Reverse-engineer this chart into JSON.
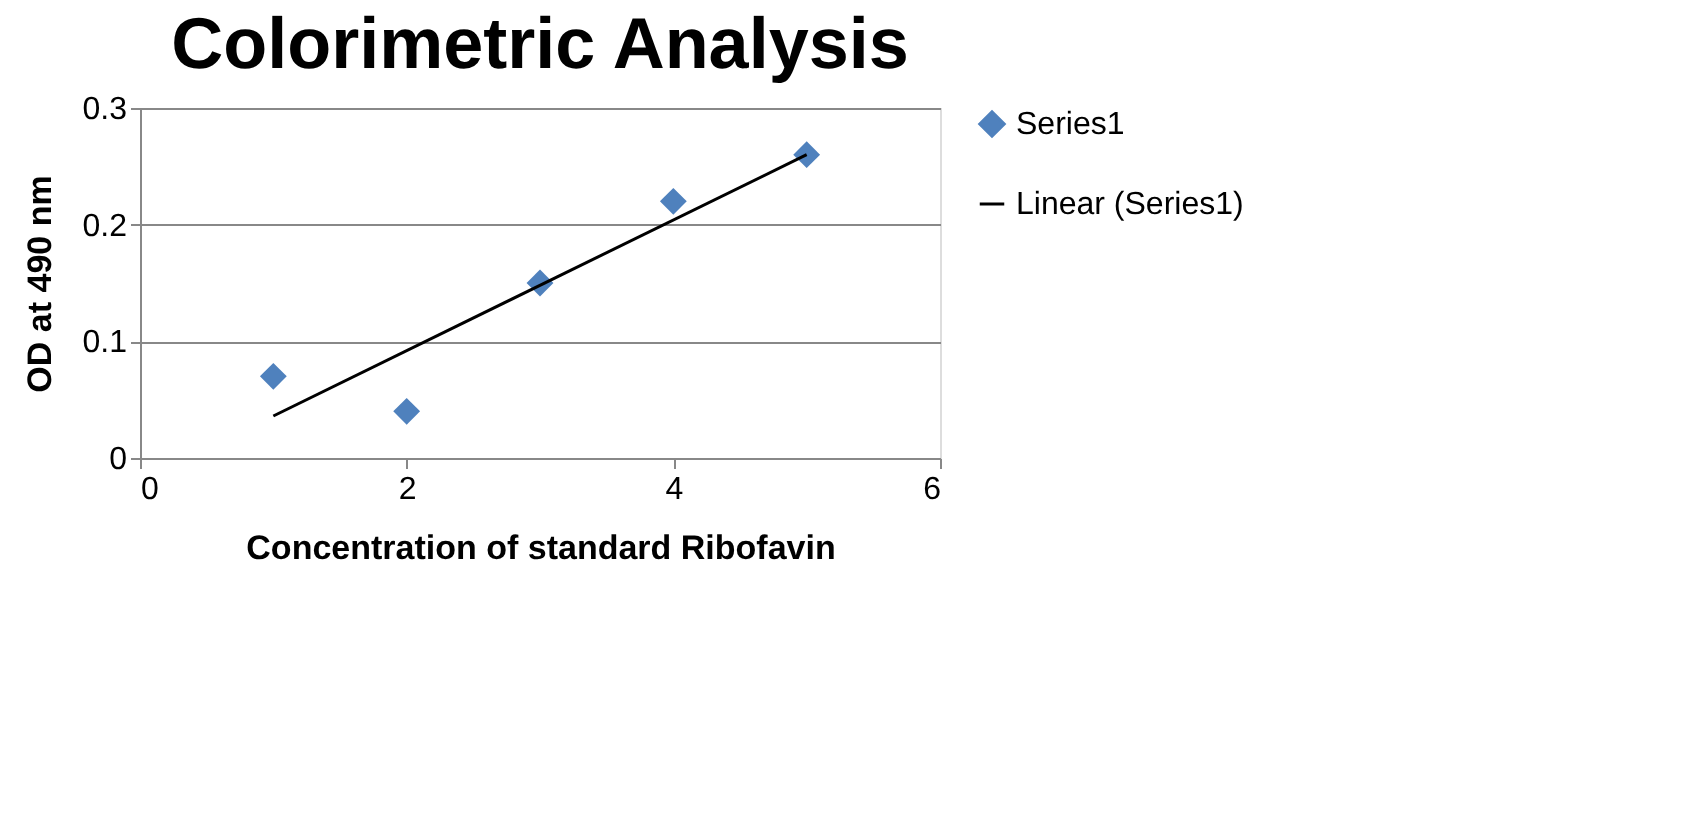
{
  "chart_data": {
    "type": "scatter",
    "title": "Colorimetric Analysis",
    "xlabel": "Concentration of  standard Ribofavin",
    "ylabel": "OD  at 490 nm",
    "x": [
      1,
      2,
      3,
      4,
      5
    ],
    "series": [
      {
        "name": "Series1",
        "color": "#4f81bd",
        "marker": "diamond",
        "values": [
          0.07,
          0.04,
          0.15,
          0.22,
          0.26
        ]
      },
      {
        "name": "Linear (Series1)",
        "color": "#000000",
        "type": "line",
        "x": [
          1,
          5
        ],
        "values": [
          0.036,
          0.26
        ]
      }
    ],
    "xlim": [
      0,
      6
    ],
    "xticks": [
      0,
      2,
      4,
      6
    ],
    "ylim": [
      0,
      0.3
    ],
    "yticks": [
      0,
      0.1,
      0.2,
      0.3
    ],
    "grid": "y",
    "legend": "right"
  }
}
